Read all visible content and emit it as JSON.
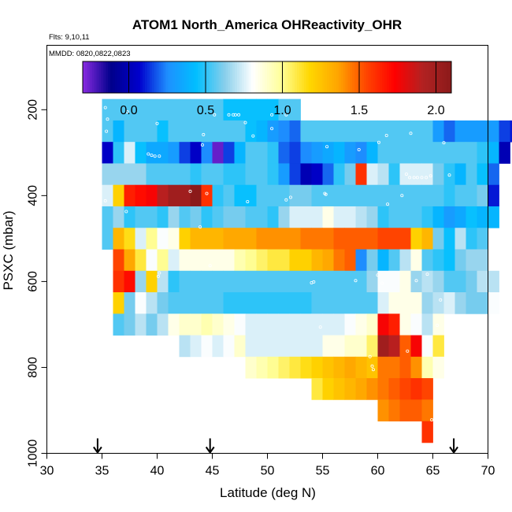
{
  "chart_data": {
    "type": "heatmap",
    "title": "ATOM1 North_America OHReactivity_OHR",
    "flights_label": "Flts: 9,10,11",
    "mmdd_label": "MMDD: 0820,0822,0823",
    "xlabel": "Latitude (deg N)",
    "ylabel": "PSXC (mbar)",
    "xlim": [
      30,
      70
    ],
    "ylim": [
      1000,
      50
    ],
    "x_ticks": [
      30,
      35,
      40,
      45,
      50,
      55,
      60,
      65,
      70
    ],
    "x_tick_labels": [
      "30",
      "35",
      "40",
      "45",
      "50",
      "55",
      "60",
      "65",
      "70"
    ],
    "y_ticks": [
      200,
      400,
      600,
      800,
      1000
    ],
    "y_tick_labels": [
      "200",
      "400",
      "600",
      "800",
      "1000"
    ],
    "colorbar": {
      "range": [
        -0.3,
        2.1
      ],
      "ticks": [
        0.0,
        0.5,
        1.0,
        1.5,
        2.0
      ],
      "tick_labels": [
        "0.0",
        "0.5",
        "1.0",
        "1.5",
        "2.0"
      ],
      "colors": [
        "#8a2be2",
        "#00008b",
        "#0000cd",
        "#1e90ff",
        "#00bfff",
        "#87ceeb",
        "#ffffff",
        "#ffff99",
        "#ffd700",
        "#ffa500",
        "#ff4500",
        "#ff0000",
        "#b22222",
        "#8b1a1a"
      ]
    },
    "grid": {
      "lat_start": 35,
      "lat_step": 1,
      "p_start": 175,
      "p_step": 50
    },
    "rows": [
      "0.55,0.55,0.55,0.55,0.55,0.55,0.55,0.55,0.55,0.55,0.55,0.45,0.45,0.45,0.45,0.45,0.55,0.55",
      "0.55,0.4,0.55,0.55,0.55,0.45,0.55,0.55,0.55,0.55,0.55,0.55,0.55,0.45,0.4,0.3,0.25,0.2,0.55,0.55,0.55,0.55,0.55,0.55,0.55,0.55,0.55,0.55,0.55,0.55,0.3,0.2,0.3,0.3,0.3,0.3,0.15,0.1",
      "0.05,0.5,0.75,0.45,0.35,0.35,0.3,0.15,0.05,0.25,-0.25,0.15,0.4,0.55,0.55,0.5,0.2,0.15,0.25,0.3,0.35,0.4,0.3,0.25,0.4,0.55,0.55,0.55,0.55,0.55,0.55,0.55,0.55,0.55,0.5,0.4,0.0",
      "0.65,0.65,0.65,0.65,0.55,0.55,0.55,0.55,0.5,0.55,0.55,0.5,0.5,0.55,0.55,0.5,0.3,0.15,0.0,0.05,0.2,0.5,0.6,1.6,0.75,0.7,0.5,0.75,0.75,0.75,0.6,0.5,0.4,0.55,0.45,0.2",
      "0.75,1.2,1.65,1.7,1.75,1.9,2.0,2.0,2.1,1.6,0.5,0.55,0.45,0.45,0.55,0.55,0.55,0.6,0.6,0.55,0.55,0.55,0.55,0.55,0.55,0.55,0.55,0.55,0.55,0.55,0.55,0.5,0.55,0.55,0.6,0.1",
      "0.55,0.65,0.5,0.55,0.55,0.5,0.65,0.55,0.6,0.5,0.55,0.6,0.6,0.55,0.55,0.5,0.65,0.75,0.75,0.75,0.85,0.75,0.75,0.7,0.65,0.5,0.55,0.55,0.55,0.5,0.4,0.3,0.35,0.45,0.4,0.4",
      "0.55,1.3,1.15,0.75,1.0,0.8,0.85,1.2,1.3,1.3,1.3,1.35,1.35,1.35,1.4,1.4,1.4,1.4,1.45,1.45,1.45,1.5,1.5,1.5,1.5,1.55,1.55,1.55,1.2,1.3,0.6,0.45,0.7,0.5,0.55",
      "-1,1.55,1.35,1.1,0.8,1.0,0.75,0.85,0.85,0.85,0.85,0.85,0.95,1.0,1.05,1.1,1.1,1.2,1.2,1.3,1.35,1.45,1.5,0.25,0.6,0.4,0.55,0.7,0.85,0.55,0.5,0.45,0.6,0.65,0.65",
      "-1,1.6,1.7,0.65,1.2,0.7,0.5,0.55,0.55,0.55,0.55,0.55,0.55,0.55,0.55,0.55,0.55,0.55,0.55,0.55,0.55,0.55,0.55,0.55,0.65,0.8,0.8,0.85,0.65,0.7,0.65,0.55,0.55,0.6,0.7,0.7",
      "-1,1.2,0.6,0.8,0.7,0.6,0.55,0.55,0.55,0.55,0.55,0.5,0.5,0.5,0.5,0.5,0.5,0.5,0.5,0.55,0.55,0.55,0.55,0.55,0.55,0.75,0.85,0.85,0.85,0.65,0.7,0.75,0.65,0.6,0.6,0.8",
      "-1,0.55,0.6,0.7,0.6,0.7,0.85,0.9,0.9,0.95,0.9,0.85,0.8,0.75,0.75,0.75,0.75,0.75,0.75,0.75,0.75,0.75,0.8,0.85,0.9,1.75,1.65,0.85,0.8,0.7,0.85",
      "-1,-1,-1,-1,-1,-1,-1,0.7,0.75,0.8,0.75,0.8,0.9,0.75,0.75,0.75,0.75,0.75,0.75,0.75,0.85,0.85,0.9,0.9,1.05,2.0,1.9,1.5,1.75,0.8,1.1",
      "-1,-1,-1,-1,-1,-1,-1,-1,-1,-1,-1,-1,-1,0.9,0.95,1.0,1.05,1.1,1.15,1.2,1.25,1.3,1.35,1.3,1.25,1.45,1.45,1.5,1.4,0.95,0.85",
      "-1,-1,-1,-1,-1,-1,-1,-1,-1,-1,-1,-1,-1,-1,-1,-1,-1,-1,-1,1.1,1.2,1.25,1.3,1.35,1.4,1.45,1.5,1.55,1.6,1.55",
      "-1,-1,-1,-1,-1,-1,-1,-1,-1,-1,-1,-1,-1,-1,-1,-1,-1,-1,-1,-1,-1,-1,-1,-1,-1,1.4,1.45,1.5,1.5,1.45",
      "-1,-1,-1,-1,-1,-1,-1,-1,-1,-1,-1,-1,-1,-1,-1,-1,-1,-1,-1,-1,-1,-1,-1,-1,-1,-1,-1,-1,-1,1.6"
    ],
    "flight_markers_lat": [
      34.6,
      44.8,
      66.9
    ],
    "track_points": [
      [
        35.3,
        195
      ],
      [
        37.3,
        205
      ],
      [
        35.5,
        222
      ],
      [
        35.4,
        250
      ],
      [
        44.2,
        258
      ],
      [
        40.0,
        232
      ],
      [
        39.2,
        303
      ],
      [
        39.5,
        306
      ],
      [
        39.8,
        308
      ],
      [
        40.2,
        308
      ],
      [
        45.2,
        212
      ],
      [
        46.5,
        212
      ],
      [
        46.9,
        212
      ],
      [
        47.1,
        212
      ],
      [
        47.4,
        212
      ],
      [
        48.0,
        230
      ],
      [
        50.4,
        212
      ],
      [
        50.4,
        244
      ],
      [
        48.7,
        261
      ],
      [
        44.1,
        282
      ],
      [
        51.7,
        212
      ],
      [
        53.5,
        200
      ],
      [
        56.3,
        198
      ],
      [
        56.6,
        198
      ],
      [
        57.0,
        198
      ],
      [
        57.6,
        198
      ],
      [
        58.2,
        198
      ],
      [
        59.2,
        210
      ],
      [
        62.1,
        198
      ],
      [
        62.2,
        198
      ],
      [
        63.9,
        220
      ],
      [
        63.0,
        255
      ],
      [
        60.8,
        260
      ],
      [
        66.0,
        277
      ],
      [
        60.1,
        276
      ],
      [
        58.3,
        293
      ],
      [
        55.4,
        286
      ],
      [
        64.8,
        354
      ],
      [
        62.6,
        350
      ],
      [
        62.9,
        358
      ],
      [
        63.3,
        358
      ],
      [
        63.6,
        358
      ],
      [
        64.0,
        358
      ],
      [
        64.4,
        358
      ],
      [
        66.5,
        352
      ],
      [
        62.2,
        400
      ],
      [
        60.9,
        420
      ],
      [
        55.2,
        395
      ],
      [
        55.3,
        397
      ],
      [
        52.1,
        404
      ],
      [
        51.7,
        410
      ],
      [
        48.2,
        414
      ],
      [
        44.5,
        395
      ],
      [
        43.0,
        390
      ],
      [
        35.3,
        412
      ],
      [
        37.2,
        437
      ],
      [
        43.9,
        473
      ],
      [
        40.2,
        580
      ],
      [
        40.1,
        588
      ],
      [
        60.0,
        585
      ],
      [
        58.0,
        598
      ],
      [
        54.2,
        601
      ],
      [
        54.0,
        603
      ],
      [
        60.4,
        604
      ],
      [
        63.5,
        598
      ],
      [
        65.7,
        643
      ],
      [
        64.5,
        583
      ],
      [
        65.4,
        702
      ],
      [
        62.7,
        762
      ],
      [
        59.3,
        775
      ],
      [
        59.5,
        797
      ],
      [
        59.6,
        805
      ],
      [
        54.8,
        706
      ],
      [
        37.3,
        741
      ],
      [
        46.4,
        780
      ],
      [
        44.8,
        563
      ],
      [
        65.4,
        840
      ],
      [
        64.9,
        922
      ]
    ]
  }
}
